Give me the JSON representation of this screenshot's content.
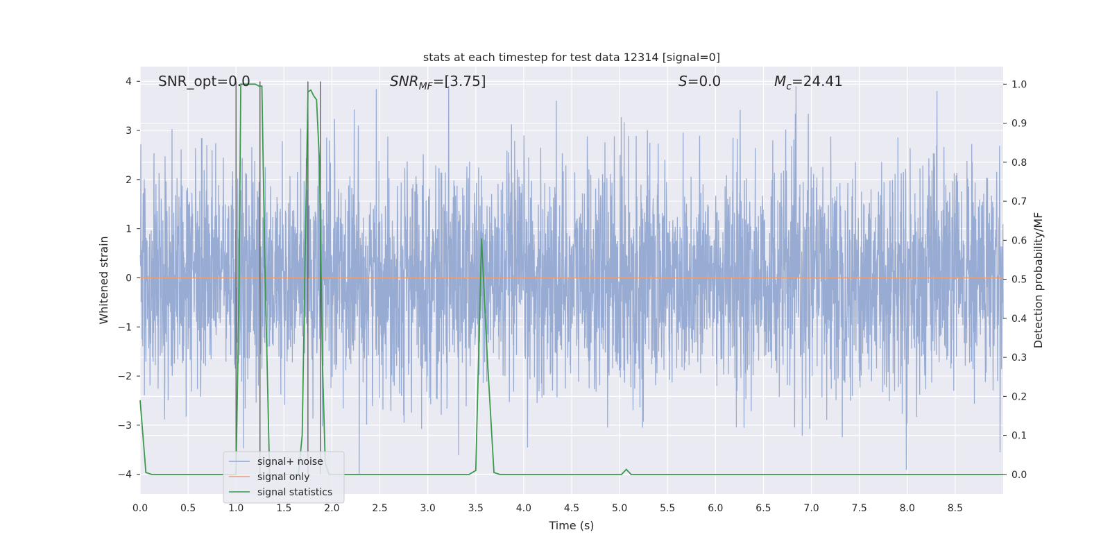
{
  "chart_data": {
    "type": "line",
    "title": "stats at each timestep for test data 12314 [signal=0]",
    "xlabel": "Time (s)",
    "ylabel": "Whitened strain",
    "ylabel_right": "Detection probability/MF",
    "xlim": [
      0.0,
      9.0
    ],
    "ylim": [
      -4.4,
      4.3
    ],
    "ylim_right": [
      -0.05,
      1.045
    ],
    "x_ticks": [
      "0.0",
      "0.5",
      "1.0",
      "1.5",
      "2.0",
      "2.5",
      "3.0",
      "3.5",
      "4.0",
      "4.5",
      "5.0",
      "5.5",
      "6.0",
      "6.5",
      "7.0",
      "7.5",
      "8.0",
      "8.5"
    ],
    "y_ticks": [
      "−4",
      "−3",
      "−2",
      "−1",
      "0",
      "1",
      "2",
      "3",
      "4"
    ],
    "y_ticks_right": [
      "0.0",
      "0.1",
      "0.2",
      "0.3",
      "0.4",
      "0.5",
      "0.6",
      "0.7",
      "0.8",
      "0.9",
      "1.0"
    ],
    "grid": true,
    "legend_position": "lower-left",
    "annotations": {
      "snr_opt": "SNR_opt=0.0",
      "snr_mf_name": "SNR",
      "snr_mf_sub": "MF",
      "snr_mf_value": "=[3.75]",
      "s_name": "S",
      "s_value": "=0.0",
      "mc_name": "M",
      "mc_sub": "c",
      "mc_value": "=24.41"
    },
    "series": [
      {
        "name": "signal+ noise",
        "color": "#92a8d1",
        "description": "whitened strain noise, roughly between -4 and 4",
        "sample_rate": 2048,
        "typical_range": [
          -1.6,
          1.6
        ],
        "extremes": [
          -4.0,
          3.9
        ]
      },
      {
        "name": "signal only",
        "color": "#e8a07a",
        "y_constant": 0.0
      },
      {
        "name": "signal statistics",
        "color": "#3a9a4a",
        "axis": "right",
        "x": [
          0.0,
          0.06,
          0.12,
          0.2,
          0.5,
          0.9,
          0.98,
          1.0,
          1.03,
          1.05,
          1.1,
          1.2,
          1.24,
          1.27,
          1.3,
          1.35,
          1.5,
          1.65,
          1.69,
          1.72,
          1.75,
          1.78,
          1.81,
          1.84,
          1.87,
          1.9,
          1.93,
          1.97,
          2.0,
          2.5,
          3.0,
          3.43,
          3.5,
          3.56,
          3.62,
          3.69,
          3.75,
          4.0,
          4.5,
          5.0,
          5.02,
          5.07,
          5.12,
          5.5,
          6.0,
          7.0,
          8.0,
          9.0
        ],
        "y": [
          0.19,
          0.005,
          0.0,
          0.0,
          0.0,
          0.0,
          0.0,
          0.0,
          0.45,
          1.0,
          1.0,
          1.0,
          0.995,
          0.995,
          0.55,
          0.0,
          0.0,
          0.0,
          0.1,
          0.55,
          0.98,
          0.985,
          0.97,
          0.96,
          0.8,
          0.3,
          0.03,
          0.0,
          0.0,
          0.0,
          0.0,
          0.0,
          0.01,
          0.605,
          0.3,
          0.005,
          0.0,
          0.0,
          0.0,
          0.0,
          0.0,
          0.013,
          0.0,
          0.0,
          0.0,
          0.0,
          0.0,
          0.0
        ]
      }
    ],
    "vertical_markers": [
      1.0,
      1.25,
      1.75,
      1.88
    ]
  }
}
